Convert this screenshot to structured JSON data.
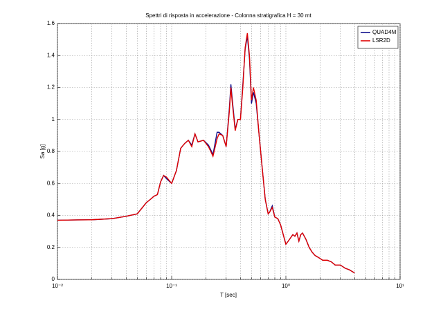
{
  "chart_data": {
    "type": "line",
    "title": "Spettri di risposta in accelerazione - Colonna stratigrafica H = 30 mt",
    "x_label": "T [sec]",
    "y_label": "Sa [g]",
    "x_scale": "log",
    "grid": true,
    "legend_position": "upper-right",
    "xlim": [
      0.01,
      10
    ],
    "ylim": [
      0,
      1.6
    ],
    "xticks": [
      {
        "value": 0.01,
        "label": "10⁻²"
      },
      {
        "value": 0.1,
        "label": "10⁻¹"
      },
      {
        "value": 1,
        "label": "10⁰"
      },
      {
        "value": 10,
        "label": "10¹"
      }
    ],
    "yticks": [
      0,
      0.2,
      0.4,
      0.6,
      0.8,
      1,
      1.2,
      1.4,
      1.6
    ],
    "x": [
      0.01,
      0.015,
      0.02,
      0.03,
      0.04,
      0.05,
      0.06,
      0.065,
      0.07,
      0.075,
      0.08,
      0.085,
      0.09,
      0.1,
      0.11,
      0.12,
      0.13,
      0.14,
      0.15,
      0.16,
      0.17,
      0.19,
      0.21,
      0.22,
      0.23,
      0.25,
      0.26,
      0.28,
      0.3,
      0.32,
      0.33,
      0.34,
      0.36,
      0.38,
      0.4,
      0.42,
      0.44,
      0.46,
      0.48,
      0.5,
      0.52,
      0.55,
      0.58,
      0.62,
      0.66,
      0.7,
      0.72,
      0.76,
      0.8,
      0.85,
      0.9,
      1.0,
      1.05,
      1.1,
      1.15,
      1.2,
      1.25,
      1.3,
      1.35,
      1.4,
      1.5,
      1.6,
      1.7,
      1.8,
      1.9,
      2.0,
      2.1,
      2.3,
      2.5,
      2.7,
      3.0,
      3.3,
      3.6,
      4.0
    ],
    "series": [
      {
        "name": "QUAD4M",
        "color": "#10108c",
        "values": [
          0.37,
          0.372,
          0.373,
          0.38,
          0.395,
          0.41,
          0.48,
          0.5,
          0.52,
          0.53,
          0.61,
          0.65,
          0.63,
          0.6,
          0.68,
          0.82,
          0.85,
          0.87,
          0.84,
          0.91,
          0.86,
          0.87,
          0.84,
          0.81,
          0.78,
          0.92,
          0.92,
          0.9,
          0.83,
          1.07,
          1.22,
          1.12,
          0.94,
          1.0,
          1.0,
          1.22,
          1.44,
          1.52,
          1.38,
          1.1,
          1.17,
          1.1,
          0.92,
          0.7,
          0.5,
          0.41,
          0.42,
          0.46,
          0.39,
          0.38,
          0.34,
          0.22,
          0.24,
          0.26,
          0.28,
          0.27,
          0.29,
          0.24,
          0.28,
          0.29,
          0.25,
          0.2,
          0.17,
          0.15,
          0.14,
          0.13,
          0.12,
          0.12,
          0.11,
          0.09,
          0.09,
          0.07,
          0.06,
          0.04
        ]
      },
      {
        "name": "LSR2D",
        "color": "#e00000",
        "values": [
          0.37,
          0.372,
          0.373,
          0.38,
          0.395,
          0.41,
          0.48,
          0.5,
          0.52,
          0.53,
          0.61,
          0.65,
          0.64,
          0.6,
          0.68,
          0.82,
          0.85,
          0.87,
          0.83,
          0.91,
          0.86,
          0.87,
          0.83,
          0.8,
          0.77,
          0.88,
          0.91,
          0.9,
          0.83,
          1.05,
          1.2,
          1.1,
          0.93,
          1.0,
          1.0,
          1.2,
          1.45,
          1.54,
          1.4,
          1.12,
          1.2,
          1.12,
          0.92,
          0.7,
          0.5,
          0.41,
          0.42,
          0.45,
          0.39,
          0.38,
          0.34,
          0.22,
          0.24,
          0.26,
          0.28,
          0.27,
          0.29,
          0.24,
          0.28,
          0.29,
          0.25,
          0.2,
          0.17,
          0.15,
          0.14,
          0.13,
          0.12,
          0.12,
          0.11,
          0.09,
          0.09,
          0.07,
          0.06,
          0.04
        ]
      }
    ]
  }
}
